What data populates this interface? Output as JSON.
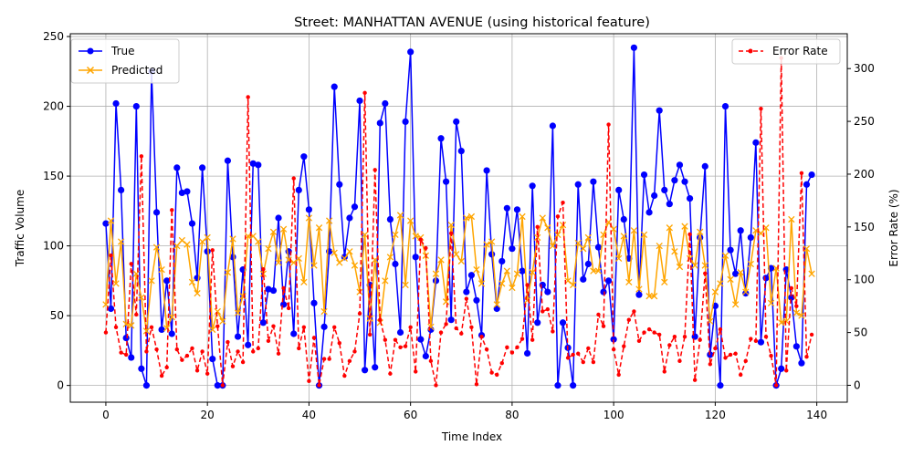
{
  "chart_data": {
    "type": "line",
    "title": "Street: MANHATTAN AVENUE (using historical feature)",
    "xlabel": "Time Index",
    "ylabel": "Traffic Volume",
    "y2label": "Error Rate (%)",
    "xlim": [
      -7,
      146
    ],
    "ylim": [
      -12,
      252
    ],
    "y2lim": [
      -16,
      333
    ],
    "xticks": [
      0,
      20,
      40,
      60,
      80,
      100,
      120,
      140
    ],
    "yticks": [
      0,
      50,
      100,
      150,
      200,
      250
    ],
    "y2ticks": [
      0,
      50,
      100,
      150,
      200,
      250,
      300
    ],
    "grid": true,
    "legend_left": {
      "placement": "upper-left",
      "entries": [
        "True",
        "Predicted"
      ]
    },
    "legend_right": {
      "placement": "upper-right",
      "entries": [
        "Error Rate"
      ]
    },
    "series": [
      {
        "name": "True",
        "axis": "left",
        "color": "#0000ff",
        "marker": "circle",
        "values": [
          116,
          55,
          202,
          140,
          34,
          20,
          200,
          12,
          0,
          225,
          124,
          40,
          75,
          37,
          156,
          138,
          139,
          116,
          77,
          156,
          96,
          19,
          0,
          0,
          161,
          92,
          35,
          83,
          29,
          159,
          158,
          45,
          69,
          68,
          120,
          58,
          96,
          37,
          140,
          164,
          126,
          59,
          0,
          42,
          96,
          214,
          144,
          92,
          120,
          128,
          204,
          11,
          72,
          13,
          188,
          202,
          119,
          87,
          38,
          189,
          239,
          92,
          33,
          21,
          40,
          75,
          177,
          146,
          47,
          189,
          168,
          67,
          79,
          61,
          36,
          154,
          94,
          55,
          89,
          127,
          98,
          126,
          82,
          23,
          143,
          45,
          72,
          67,
          186,
          0,
          45,
          27,
          0,
          144,
          76,
          87,
          146,
          99,
          67,
          75,
          33,
          140,
          119,
          91,
          242,
          65,
          151,
          124,
          136,
          197,
          140,
          130,
          147,
          158,
          146,
          134,
          35,
          106,
          157,
          22,
          57,
          0,
          200,
          97,
          80,
          111,
          66,
          106,
          174,
          31,
          77,
          84,
          0,
          12,
          83,
          63,
          28,
          16,
          144,
          151
        ]
      },
      {
        "name": "Predicted",
        "axis": "left",
        "color": "#ffa500",
        "marker": "x",
        "values": [
          58,
          118,
          73,
          103,
          44,
          43,
          80,
          63,
          39,
          75,
          99,
          83,
          41,
          49,
          100,
          104,
          101,
          74,
          66,
          103,
          106,
          40,
          53,
          46,
          81,
          105,
          52,
          64,
          107,
          107,
          103,
          80,
          98,
          110,
          88,
          112,
          90,
          88,
          91,
          74,
          120,
          86,
          113,
          53,
          118,
          95,
          88,
          91,
          96,
          86,
          67,
          108,
          48,
          90,
          45,
          75,
          92,
          108,
          122,
          72,
          118,
          107,
          106,
          93,
          42,
          80,
          90,
          60,
          115,
          94,
          89,
          120,
          121,
          83,
          73,
          101,
          103,
          58,
          73,
          82,
          70,
          80,
          121,
          61,
          81,
          106,
          120,
          113,
          100,
          108,
          115,
          75,
          72,
          102,
          98,
          106,
          82,
          82,
          108,
          117,
          112,
          91,
          107,
          74,
          111,
          69,
          108,
          64,
          64,
          100,
          74,
          113,
          96,
          85,
          114,
          91,
          86,
          110,
          86,
          46,
          67,
          73,
          93,
          76,
          58,
          81,
          67,
          87,
          111,
          109,
          113,
          59,
          84,
          45,
          46,
          119,
          52,
          50,
          98,
          80
        ]
      },
      {
        "name": "Error Rate",
        "axis": "right",
        "color": "#ff0000",
        "marker": "dot",
        "linestyle": "dashed",
        "values": [
          50,
          123,
          55,
          31,
          29,
          115,
          67,
          217,
          32,
          55,
          34,
          9,
          17,
          166,
          34,
          24,
          28,
          35,
          14,
          32,
          11,
          128,
          56,
          0,
          41,
          18,
          32,
          22,
          273,
          32,
          35,
          110,
          42,
          56,
          30,
          92,
          73,
          196,
          35,
          55,
          4,
          45,
          0,
          25,
          25,
          55,
          40,
          9,
          23,
          32,
          68,
          277,
          48,
          204,
          62,
          43,
          11,
          43,
          36,
          37,
          55,
          13,
          138,
          130,
          23,
          0,
          50,
          58,
          144,
          54,
          49,
          82,
          55,
          1,
          46,
          34,
          12,
          10,
          21,
          36,
          31,
          36,
          44,
          95,
          43,
          150,
          70,
          72,
          51,
          160,
          173,
          26,
          29,
          30,
          22,
          35,
          22,
          67,
          56,
          247,
          34,
          10,
          37,
          62,
          70,
          42,
          50,
          53,
          50,
          48,
          13,
          38,
          46,
          23,
          46,
          143,
          5,
          43,
          106,
          20,
          35,
          53,
          26,
          29,
          30,
          10,
          23,
          44,
          42,
          262,
          46,
          28,
          0,
          310,
          14,
          92,
          75,
          201,
          27,
          48
        ]
      }
    ]
  }
}
